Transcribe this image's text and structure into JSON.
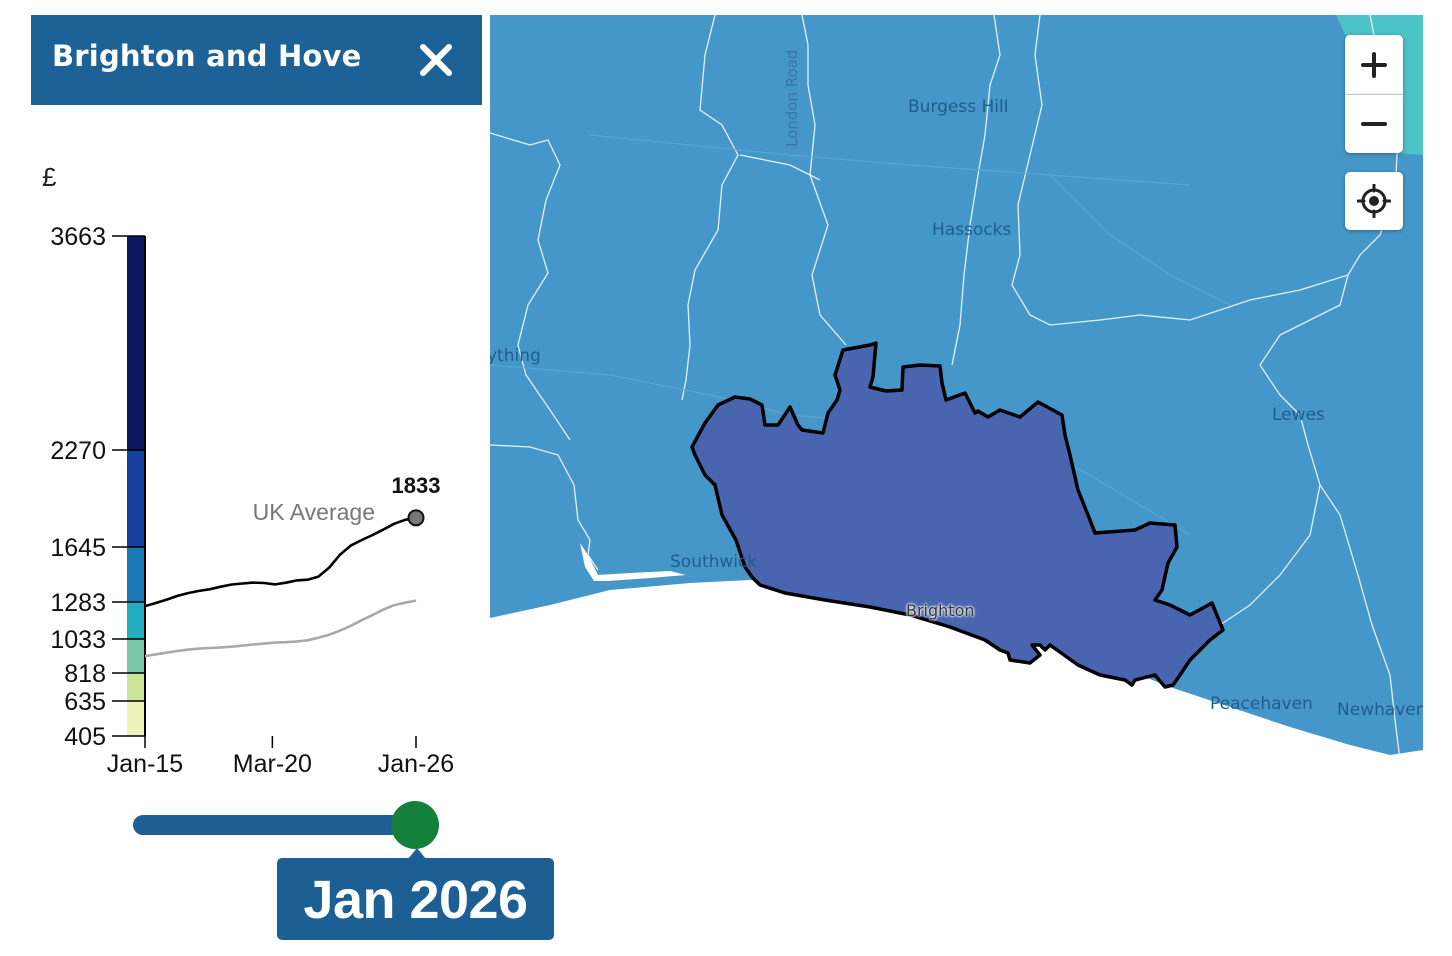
{
  "panel": {
    "title": "Brighton and Hove",
    "unit": "£"
  },
  "chart_data": {
    "type": "line",
    "ylabel": "£",
    "legend_ticks": [
      405,
      635,
      818,
      1033,
      1283,
      1645,
      2270,
      3663
    ],
    "legend_colors": [
      "#edf3b9",
      "#cbe499",
      "#77c6a9",
      "#22aec0",
      "#1a78b7",
      "#1540a0",
      "#0a1660"
    ],
    "ylim": [
      405,
      3663
    ],
    "x_ticks": [
      "Jan-15",
      "Mar-20",
      "Jan-26"
    ],
    "series": [
      {
        "name": "Brighton and Hove",
        "color": "#000000",
        "t": [
          0,
          0.04,
          0.08,
          0.12,
          0.16,
          0.2,
          0.24,
          0.28,
          0.32,
          0.36,
          0.4,
          0.44,
          0.48,
          0.52,
          0.56,
          0.6,
          0.64,
          0.68,
          0.72,
          0.76,
          0.8,
          0.84,
          0.88,
          0.92,
          0.96,
          1
        ],
        "values": [
          1255,
          1276,
          1299,
          1323,
          1342,
          1356,
          1367,
          1384,
          1398,
          1405,
          1411,
          1408,
          1399,
          1410,
          1425,
          1430,
          1450,
          1510,
          1595,
          1655,
          1690,
          1722,
          1758,
          1795,
          1820,
          1833
        ]
      },
      {
        "name": "UK Average",
        "color": "#a9a9a9",
        "t": [
          0,
          0.04,
          0.08,
          0.12,
          0.16,
          0.2,
          0.24,
          0.28,
          0.32,
          0.36,
          0.4,
          0.44,
          0.48,
          0.52,
          0.56,
          0.6,
          0.64,
          0.68,
          0.72,
          0.76,
          0.8,
          0.84,
          0.88,
          0.92,
          0.96,
          1
        ],
        "values": [
          925,
          936,
          947,
          957,
          966,
          972,
          976,
          980,
          984,
          991,
          998,
          1004,
          1010,
          1013,
          1017,
          1025,
          1042,
          1062,
          1090,
          1123,
          1160,
          1195,
          1232,
          1262,
          1278,
          1292
        ]
      }
    ],
    "latest_value_label": "1833",
    "series_label": "UK Average"
  },
  "slider": {
    "date_label": "Jan 2026",
    "position_fraction": 1.0
  },
  "map": {
    "place_labels": {
      "burgess_hill": "Burgess Hill",
      "hassocks": "Hassocks",
      "lewes": "Lewes",
      "worthing_partial": "ything",
      "southwick": "Southwick",
      "brighton": "Brighton",
      "peacehaven": "Peacehaven",
      "newhaven": "Newhaven"
    },
    "road_label": "London Road",
    "colors": {
      "surrounding_fill": "#4697c9",
      "selected_fill": "#4a65b0",
      "teal_corner": "#4cc3c7",
      "sea": "#ffffff"
    }
  },
  "controls": {
    "zoom_in_icon": "plus-icon",
    "zoom_out_icon": "minus-icon",
    "locate_icon": "crosshair-icon"
  }
}
